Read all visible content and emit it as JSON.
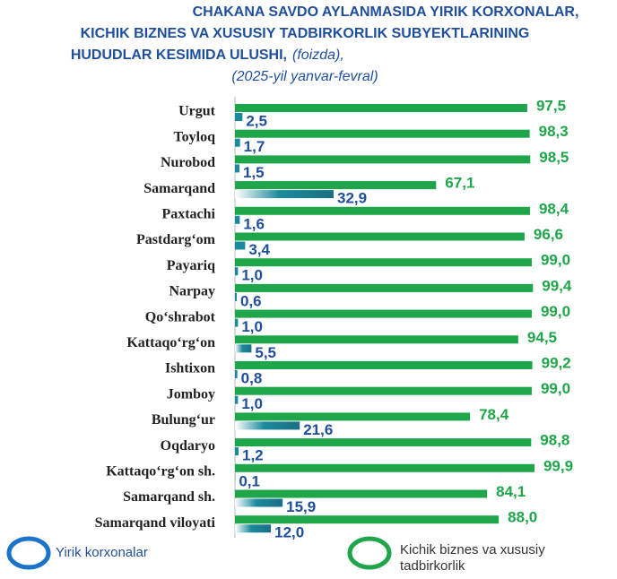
{
  "chart_data": {
    "type": "bar",
    "orientation": "horizontal",
    "title": [
      "CHAKANA SAVDO AYLANMASIDA YIRIK KORXONALAR,",
      "KICHIK BIZNES VA XUSUSIY TADBIRKORLIK SUBYEKTLARINING",
      "HUDUDLAR KESIMIDA ULUSHI,"
    ],
    "unit": "(foizda),",
    "subtitle": "(2025-yil yanvar-fevral)",
    "categories": [
      "Urgut",
      "Toyloq",
      "Nurobod",
      "Samarqand",
      "Paxtachi",
      "Pastdarg‘om",
      "Payariq",
      "Narpay",
      "Qo‘shrabot",
      "Kattaqo‘rg‘on",
      "Ishtixon",
      "Jomboy",
      "Bulung‘ur",
      "Oqdaryo",
      "Kattaqo‘rg‘on sh.",
      "Samarqand sh.",
      "Samarqand viloyati"
    ],
    "xlim": [
      0,
      100
    ],
    "series": [
      {
        "name": "Kichik biznes va xususiy tadbirkorlik",
        "color": "#1fa64a",
        "values": [
          97.5,
          98.3,
          98.5,
          67.1,
          98.4,
          96.6,
          99.0,
          99.4,
          99.0,
          94.5,
          99.2,
          99.0,
          78.4,
          98.8,
          99.9,
          84.1,
          88.0
        ],
        "value_labels": [
          "97,5",
          "98,3",
          "98,5",
          "67,1",
          "98,4",
          "96,6",
          "99,0",
          "99,4",
          "99,0",
          "94,5",
          "99,2",
          "99,0",
          "78,4",
          "98,8",
          "99,9",
          "84,1",
          "88,0"
        ]
      },
      {
        "name": "Yirik korxonalar",
        "color": "#1b8a9c",
        "values": [
          2.5,
          1.7,
          1.5,
          32.9,
          1.6,
          3.4,
          1.0,
          0.6,
          1.0,
          5.5,
          0.8,
          1.0,
          21.6,
          1.2,
          0.1,
          15.9,
          12.0
        ],
        "value_labels": [
          "2,5",
          "1,7",
          "1,5",
          "32,9",
          "1,6",
          "3,4",
          "1,0",
          "0,6",
          "1,0",
          "5,5",
          "0,8",
          "1,0",
          "21,6",
          "1,2",
          "0,1",
          "15,9",
          "12,0"
        ]
      }
    ]
  }
}
